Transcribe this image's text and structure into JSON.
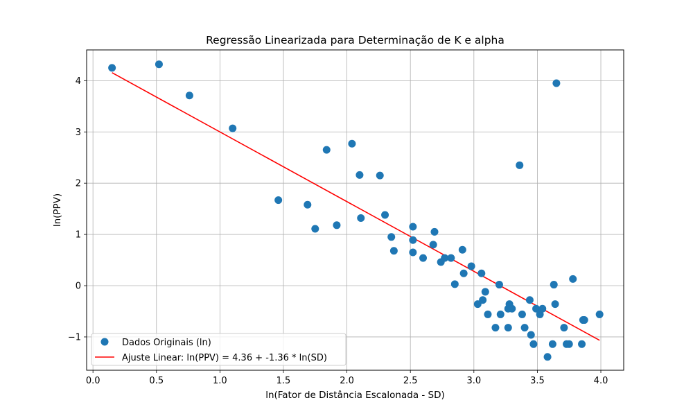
{
  "chart_data": {
    "type": "scatter",
    "title": "Regressão Linearizada para Determinação de K e alpha",
    "xlabel": "ln(Fator de Distância Escalonada - SD)",
    "ylabel": "ln(PPV)",
    "xlim": [
      -0.05,
      4.18
    ],
    "ylim": [
      -1.65,
      4.6
    ],
    "xticks": [
      0.0,
      0.5,
      1.0,
      1.5,
      2.0,
      2.5,
      3.0,
      3.5,
      4.0
    ],
    "xtick_labels": [
      "0.0",
      "0.5",
      "1.0",
      "1.5",
      "2.0",
      "2.5",
      "3.0",
      "3.5",
      "4.0"
    ],
    "yticks": [
      -1,
      0,
      1,
      2,
      3,
      4
    ],
    "ytick_labels": [
      "−1",
      "0",
      "1",
      "2",
      "3",
      "4"
    ],
    "grid": true,
    "legend_position": "lower-left",
    "series": [
      {
        "name": "Dados Originais (ln)",
        "kind": "scatter",
        "color": "#1f77b4",
        "points": [
          [
            0.15,
            4.25
          ],
          [
            0.52,
            4.32
          ],
          [
            0.76,
            3.71
          ],
          [
            1.1,
            3.07
          ],
          [
            1.46,
            1.67
          ],
          [
            1.69,
            1.58
          ],
          [
            1.75,
            1.11
          ],
          [
            1.84,
            2.65
          ],
          [
            1.92,
            1.18
          ],
          [
            2.04,
            2.77
          ],
          [
            2.1,
            2.16
          ],
          [
            2.11,
            1.32
          ],
          [
            2.26,
            2.15
          ],
          [
            2.3,
            1.38
          ],
          [
            2.35,
            0.95
          ],
          [
            2.37,
            0.68
          ],
          [
            2.52,
            1.15
          ],
          [
            2.52,
            0.89
          ],
          [
            2.52,
            0.65
          ],
          [
            2.6,
            0.54
          ],
          [
            2.68,
            0.8
          ],
          [
            2.69,
            1.05
          ],
          [
            2.74,
            0.46
          ],
          [
            2.77,
            0.54
          ],
          [
            2.82,
            0.54
          ],
          [
            2.85,
            0.03
          ],
          [
            2.91,
            0.7
          ],
          [
            2.92,
            0.24
          ],
          [
            2.98,
            0.38
          ],
          [
            3.03,
            -0.36
          ],
          [
            3.06,
            0.24
          ],
          [
            3.07,
            -0.28
          ],
          [
            3.09,
            -0.12
          ],
          [
            3.11,
            -0.56
          ],
          [
            3.17,
            -0.82
          ],
          [
            3.2,
            0.02
          ],
          [
            3.21,
            -0.56
          ],
          [
            3.27,
            -0.45
          ],
          [
            3.27,
            -0.82
          ],
          [
            3.28,
            -0.36
          ],
          [
            3.3,
            -0.45
          ],
          [
            3.36,
            2.35
          ],
          [
            3.38,
            -0.56
          ],
          [
            3.4,
            -0.82
          ],
          [
            3.44,
            -0.28
          ],
          [
            3.45,
            -0.96
          ],
          [
            3.47,
            -1.14
          ],
          [
            3.49,
            -0.45
          ],
          [
            3.52,
            -0.56
          ],
          [
            3.54,
            -0.45
          ],
          [
            3.58,
            -1.39
          ],
          [
            3.62,
            -1.14
          ],
          [
            3.63,
            0.02
          ],
          [
            3.64,
            -0.36
          ],
          [
            3.65,
            3.95
          ],
          [
            3.71,
            -0.82
          ],
          [
            3.73,
            -1.14
          ],
          [
            3.75,
            -1.14
          ],
          [
            3.78,
            0.13
          ],
          [
            3.85,
            -1.14
          ],
          [
            3.86,
            -0.67
          ],
          [
            3.87,
            -0.67
          ],
          [
            3.99,
            -0.56
          ]
        ]
      },
      {
        "name": "Ajuste Linear: ln(PPV) = 4.36 + -1.36 * ln(SD)",
        "kind": "line",
        "color": "#ff0000",
        "intercept": 4.36,
        "slope": -1.36,
        "x_range": [
          0.15,
          3.99
        ]
      }
    ]
  }
}
